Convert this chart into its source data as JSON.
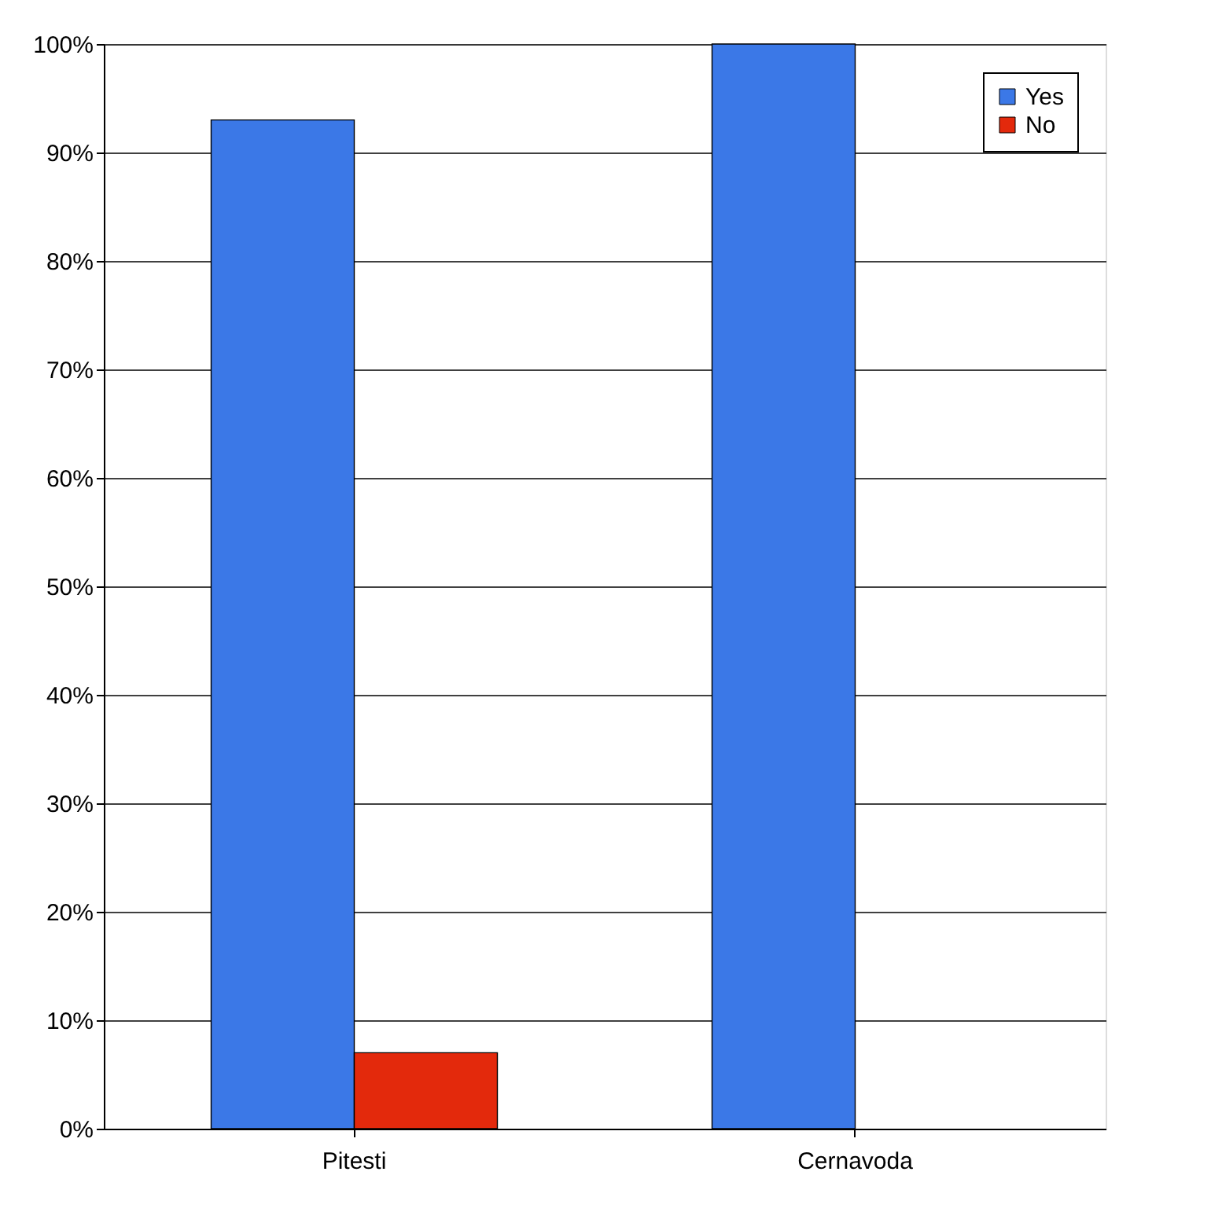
{
  "chart_data": {
    "type": "bar",
    "categories": [
      "Pitesti",
      "Cernavoda"
    ],
    "series": [
      {
        "name": "Yes",
        "color": "#3b78e7",
        "values": [
          93,
          100
        ]
      },
      {
        "name": "No",
        "color": "#e3290c",
        "values": [
          7,
          null
        ]
      }
    ],
    "ylim": [
      0,
      100
    ],
    "yticks": [
      {
        "value": 0,
        "label": "0%"
      },
      {
        "value": 10,
        "label": "10%"
      },
      {
        "value": 20,
        "label": "20%"
      },
      {
        "value": 30,
        "label": "30%"
      },
      {
        "value": 40,
        "label": "40%"
      },
      {
        "value": 50,
        "label": "50%"
      },
      {
        "value": 60,
        "label": "60%"
      },
      {
        "value": 70,
        "label": "70%"
      },
      {
        "value": 80,
        "label": "80%"
      },
      {
        "value": 90,
        "label": "90%"
      },
      {
        "value": 100,
        "label": "100%"
      }
    ],
    "grid": "y",
    "legend": "top right"
  }
}
